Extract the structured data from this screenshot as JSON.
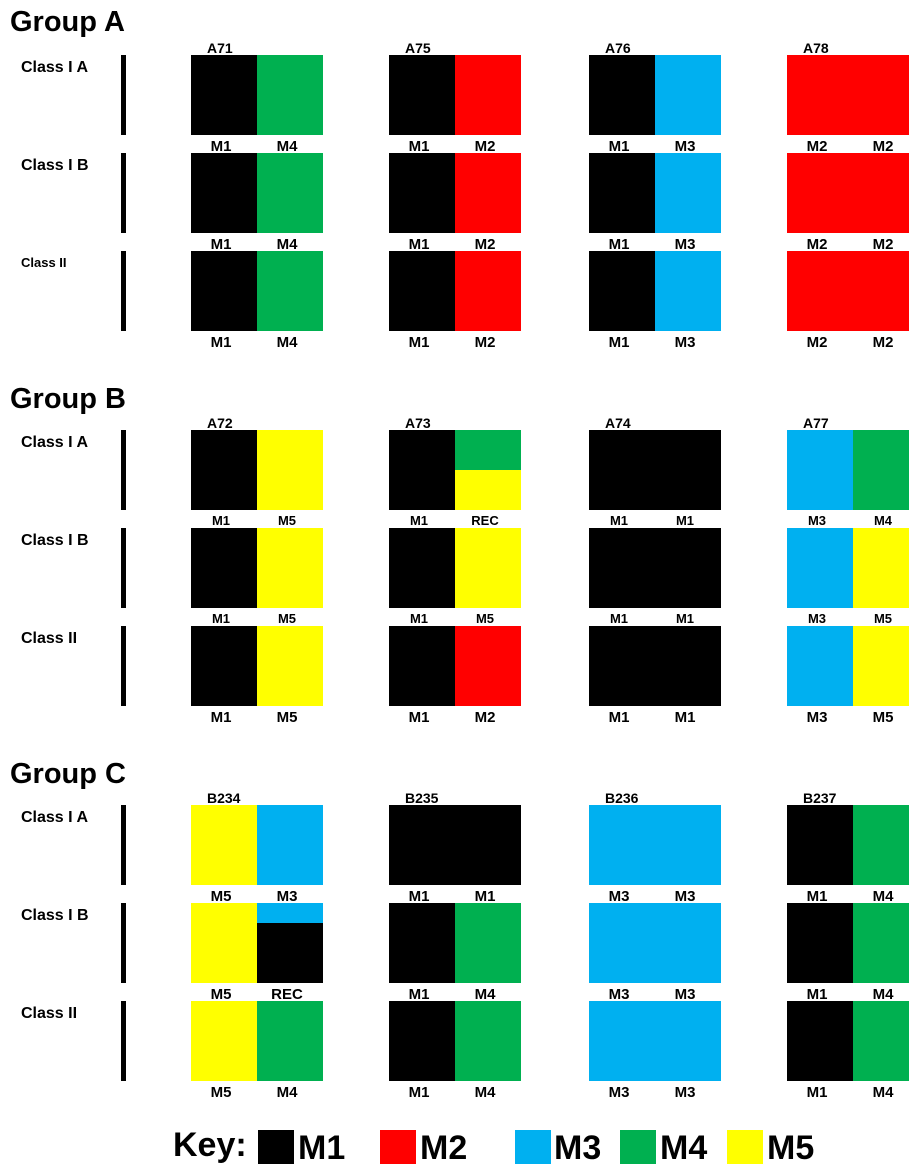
{
  "colors": {
    "M1": "#000000",
    "M2": "#ff0000",
    "M3": "#00b0f0",
    "M4": "#00b050",
    "M5": "#ffff00"
  },
  "groups": [
    {
      "title": "Group A",
      "classes": [
        "Class I A",
        "Class I B",
        "Class II"
      ],
      "samples": [
        "A71",
        "A75",
        "A76",
        "A78"
      ],
      "cells": [
        [
          {
            "left": "M1",
            "right": "M4",
            "labels": [
              "M1",
              "M4"
            ]
          },
          {
            "left": "M1",
            "right": "M2",
            "labels": [
              "M1",
              "M2"
            ]
          },
          {
            "left": "M1",
            "right": "M3",
            "labels": [
              "M1",
              "M3"
            ]
          },
          {
            "left": "M2",
            "right": "M2",
            "labels": [
              "M2",
              "M2"
            ]
          }
        ],
        [
          {
            "left": "M1",
            "right": "M4",
            "labels": [
              "M1",
              "M4"
            ]
          },
          {
            "left": "M1",
            "right": "M2",
            "labels": [
              "M1",
              "M2"
            ]
          },
          {
            "left": "M1",
            "right": "M3",
            "labels": [
              "M1",
              "M3"
            ]
          },
          {
            "left": "M2",
            "right": "M2",
            "labels": [
              "M2",
              "M2"
            ]
          }
        ],
        [
          {
            "left": "M1",
            "right": "M4",
            "labels": [
              "M1",
              "M4"
            ]
          },
          {
            "left": "M1",
            "right": "M2",
            "labels": [
              "M1",
              "M2"
            ]
          },
          {
            "left": "M1",
            "right": "M3",
            "labels": [
              "M1",
              "M3"
            ]
          },
          {
            "left": "M2",
            "right": "M2",
            "labels": [
              "M2",
              "M2"
            ]
          }
        ]
      ]
    },
    {
      "title": "Group B",
      "classes": [
        "Class I A",
        "Class I B",
        "Class II"
      ],
      "samples": [
        "A72",
        "A73",
        "A74",
        "A77"
      ],
      "cells": [
        [
          {
            "left": "M1",
            "right": "M5",
            "labels": [
              "M1",
              "M5"
            ]
          },
          {
            "left": "M1",
            "right_top": "M4",
            "right_bottom": "M5",
            "split": 0.5,
            "labels": [
              "M1",
              "REC"
            ]
          },
          {
            "left": "M1",
            "right": "M1",
            "labels": [
              "M1",
              "M1"
            ]
          },
          {
            "left": "M3",
            "right": "M4",
            "labels": [
              "M3",
              "M4"
            ]
          }
        ],
        [
          {
            "left": "M1",
            "right": "M5",
            "labels": [
              "M1",
              "M5"
            ]
          },
          {
            "left": "M1",
            "right": "M5",
            "labels": [
              "M1",
              "M5"
            ]
          },
          {
            "left": "M1",
            "right": "M1",
            "labels": [
              "M1",
              "M1"
            ]
          },
          {
            "left": "M3",
            "right": "M5",
            "labels": [
              "M3",
              "M5"
            ]
          }
        ],
        [
          {
            "left": "M1",
            "right": "M5",
            "labels": [
              "M1",
              "M5"
            ]
          },
          {
            "left": "M1",
            "right": "M2",
            "labels": [
              "M1",
              "M2"
            ]
          },
          {
            "left": "M1",
            "right": "M1",
            "labels": [
              "M1",
              "M1"
            ]
          },
          {
            "left": "M3",
            "right": "M5",
            "labels": [
              "M3",
              "M5"
            ]
          }
        ]
      ]
    },
    {
      "title": "Group C",
      "classes": [
        "Class I A",
        "Class I B",
        "Class II"
      ],
      "samples": [
        "B234",
        "B235",
        "B236",
        "B237"
      ],
      "cells": [
        [
          {
            "left": "M5",
            "right": "M3",
            "labels": [
              "M5",
              "M3"
            ]
          },
          {
            "left": "M1",
            "right": "M1",
            "labels": [
              "M1",
              "M1"
            ]
          },
          {
            "left": "M3",
            "right": "M3",
            "labels": [
              "M3",
              "M3"
            ]
          },
          {
            "left": "M1",
            "right": "M4",
            "labels": [
              "M1",
              "M4"
            ]
          }
        ],
        [
          {
            "left": "M5",
            "right_top": "M3",
            "right_bottom": "M1",
            "split": 0.25,
            "labels": [
              "M5",
              "REC"
            ]
          },
          {
            "left": "M1",
            "right": "M4",
            "labels": [
              "M1",
              "M4"
            ]
          },
          {
            "left": "M3",
            "right": "M3",
            "labels": [
              "M3",
              "M3"
            ]
          },
          {
            "left": "M1",
            "right": "M4",
            "labels": [
              "M1",
              "M4"
            ]
          }
        ],
        [
          {
            "left": "M5",
            "right": "M4",
            "labels": [
              "M5",
              "M4"
            ]
          },
          {
            "left": "M1",
            "right": "M4",
            "labels": [
              "M1",
              "M4"
            ]
          },
          {
            "left": "M3",
            "right": "M3",
            "labels": [
              "M3",
              "M3"
            ]
          },
          {
            "left": "M1",
            "right": "M4",
            "labels": [
              "M1",
              "M4"
            ]
          }
        ]
      ]
    }
  ],
  "key": {
    "label": "Key:",
    "items": [
      "M1",
      "M2",
      "M3",
      "M4",
      "M5"
    ]
  }
}
